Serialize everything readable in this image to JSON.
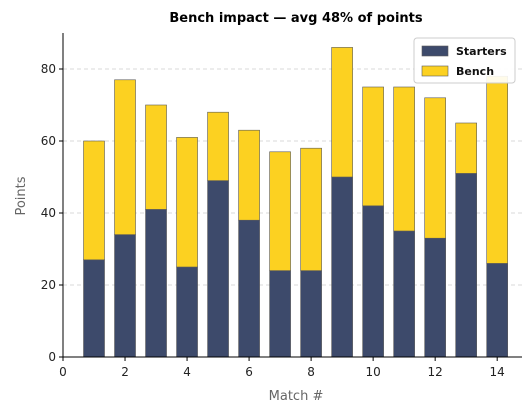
{
  "chart_data": {
    "type": "bar",
    "stacked": true,
    "title": "Bench impact — avg 48% of points",
    "xlabel": "Match #",
    "ylabel": "Points",
    "x": [
      1,
      2,
      3,
      4,
      5,
      6,
      7,
      8,
      9,
      10,
      11,
      12,
      13,
      14
    ],
    "series": [
      {
        "name": "Starters",
        "color": "#3d4a6b",
        "values": [
          27,
          34,
          41,
          25,
          49,
          38,
          24,
          24,
          50,
          42,
          35,
          33,
          51,
          26
        ]
      },
      {
        "name": "Bench",
        "color": "#fcd121",
        "values": [
          33,
          43,
          29,
          36,
          19,
          25,
          33,
          34,
          36,
          33,
          40,
          39,
          14,
          52
        ]
      }
    ],
    "xlim": [
      0,
      14.8
    ],
    "ylim": [
      0,
      90
    ],
    "x_ticks": [
      0,
      2,
      4,
      6,
      8,
      10,
      12,
      14
    ],
    "y_ticks": [
      0,
      20,
      40,
      60,
      80
    ],
    "grid": "horizontal-dashed",
    "legend_position": "top-right"
  }
}
